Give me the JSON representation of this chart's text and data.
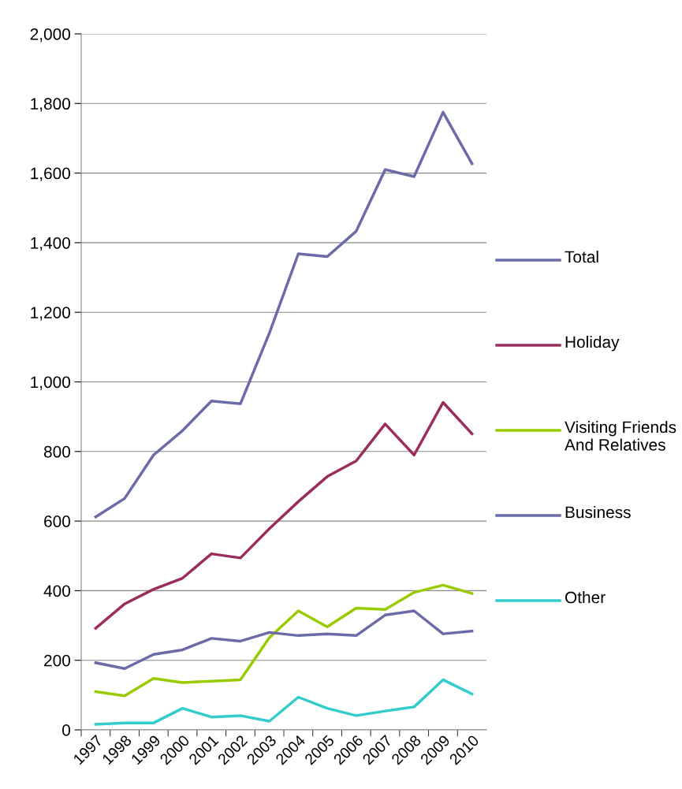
{
  "chart_data": {
    "type": "line",
    "categories": [
      "1997",
      "1998",
      "1999",
      "2000",
      "2001",
      "2002",
      "2003",
      "2004",
      "2005",
      "2006",
      "2007",
      "2008",
      "2009",
      "2010"
    ],
    "series": [
      {
        "name": "Total",
        "color": "#6b6ba8",
        "values": [
          612,
          665,
          790,
          860,
          945,
          937,
          1140,
          1368,
          1360,
          1433,
          1610,
          1590,
          1775,
          1627
        ]
      },
      {
        "name": "Holiday",
        "color": "#9b2d5e",
        "values": [
          292,
          362,
          404,
          436,
          506,
          494,
          578,
          656,
          728,
          773,
          879,
          790,
          941,
          851
        ]
      },
      {
        "name": "Visiting Friends And Relatives",
        "color": "#99cc00",
        "values": [
          110,
          98,
          148,
          136,
          140,
          144,
          265,
          342,
          296,
          350,
          346,
          395,
          416,
          392
        ]
      },
      {
        "name": "Business",
        "color": "#6b6ba8",
        "values": [
          193,
          176,
          217,
          230,
          263,
          255,
          280,
          271,
          276,
          271,
          330,
          342,
          276,
          284
        ]
      },
      {
        "name": "Other",
        "color": "#33cccc",
        "values": [
          16,
          20,
          20,
          62,
          37,
          41,
          25,
          94,
          62,
          41,
          54,
          66,
          144,
          103
        ]
      }
    ],
    "ylim": [
      0,
      2000
    ],
    "yticks": [
      {
        "value": 0,
        "label": "0"
      },
      {
        "value": 200,
        "label": "200"
      },
      {
        "value": 400,
        "label": "400"
      },
      {
        "value": 600,
        "label": "600"
      },
      {
        "value": 800,
        "label": "800"
      },
      {
        "value": 1000,
        "label": "1,000"
      },
      {
        "value": 1200,
        "label": "1,200"
      },
      {
        "value": 1400,
        "label": "1,400"
      },
      {
        "value": 1600,
        "label": "1,600"
      },
      {
        "value": 1800,
        "label": "1,800"
      },
      {
        "value": 2000,
        "label": "2,000"
      }
    ],
    "grid": "y",
    "legend": "right",
    "marker": "none",
    "line_style": "solid"
  }
}
